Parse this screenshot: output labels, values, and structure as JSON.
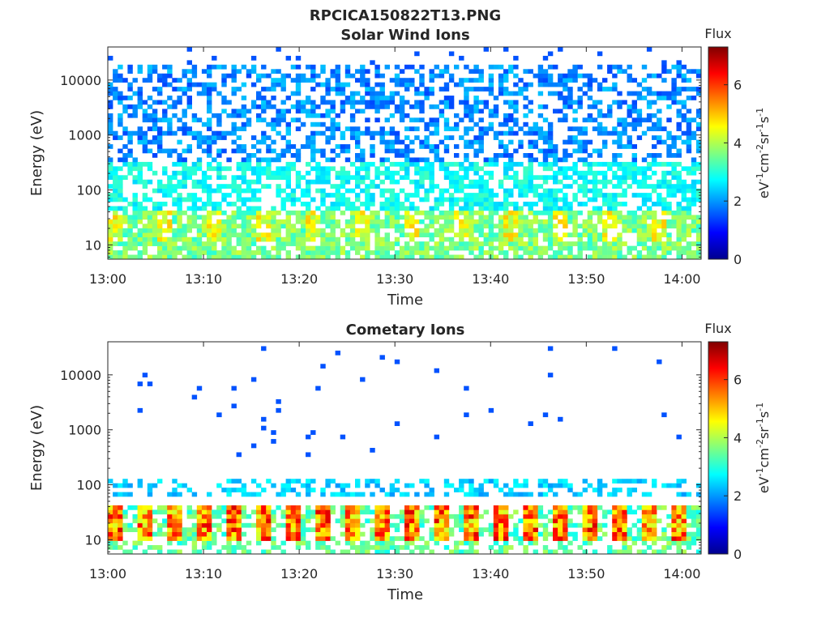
{
  "figure_title": "RPCICA150822T13.PNG",
  "chart_data": [
    {
      "type": "heatmap",
      "title": "Solar Wind Ions",
      "xlabel": "Time",
      "ylabel": "Energy (eV)",
      "y_scale": "log",
      "xlim": [
        "13:00",
        "14:02"
      ],
      "ylim": [
        5.5,
        40000
      ],
      "x_tick_labels": [
        "13:00",
        "13:10",
        "13:20",
        "13:30",
        "13:40",
        "13:50",
        "14:00"
      ],
      "y_tick_values": [
        10,
        100,
        1000,
        10000
      ],
      "y_tick_labels": [
        "10",
        "100",
        "1000",
        "10000"
      ],
      "colorbar": {
        "title": "Flux",
        "units": "eV-1cm-2sr-1s-1",
        "range": [
          0,
          7.3
        ],
        "tick_values": [
          0,
          2,
          4,
          6
        ],
        "tick_labels": [
          "0",
          "2",
          "4",
          "6"
        ],
        "colormap": "jet"
      },
      "description_levels": {
        "energy_above_300eV": "sparse 1.5-2.5",
        "energy_40_to_300eV": "2.5-3.2",
        "energy_below_40eV": "3.0-4.8 with periodic peaks ~5"
      }
    },
    {
      "type": "heatmap",
      "title": "Cometary Ions",
      "xlabel": "Time",
      "ylabel": "Energy (eV)",
      "y_scale": "log",
      "xlim": [
        "13:00",
        "14:02"
      ],
      "ylim": [
        5.5,
        40000
      ],
      "x_tick_labels": [
        "13:00",
        "13:10",
        "13:20",
        "13:30",
        "13:40",
        "13:50",
        "14:00"
      ],
      "y_tick_values": [
        10,
        100,
        1000,
        10000
      ],
      "y_tick_labels": [
        "10",
        "100",
        "1000",
        "10000"
      ],
      "colorbar": {
        "title": "Flux",
        "units": "eV-1cm-2sr-1s-1",
        "range": [
          0,
          7.3
        ],
        "tick_values": [
          0,
          2,
          4,
          6
        ],
        "tick_labels": [
          "0",
          "2",
          "4",
          "6"
        ],
        "colormap": "jet"
      },
      "burst_period_minutes": 3,
      "burst_energy_range_eV": [
        10,
        40
      ],
      "burst_peak_flux": 6.5,
      "description_levels": {
        "energy_above_300eV": "isolated dots ~1.5",
        "energy_60_to_130eV": "2.0-2.8",
        "energy_below_40eV": "bursts 4-6.8"
      }
    }
  ]
}
